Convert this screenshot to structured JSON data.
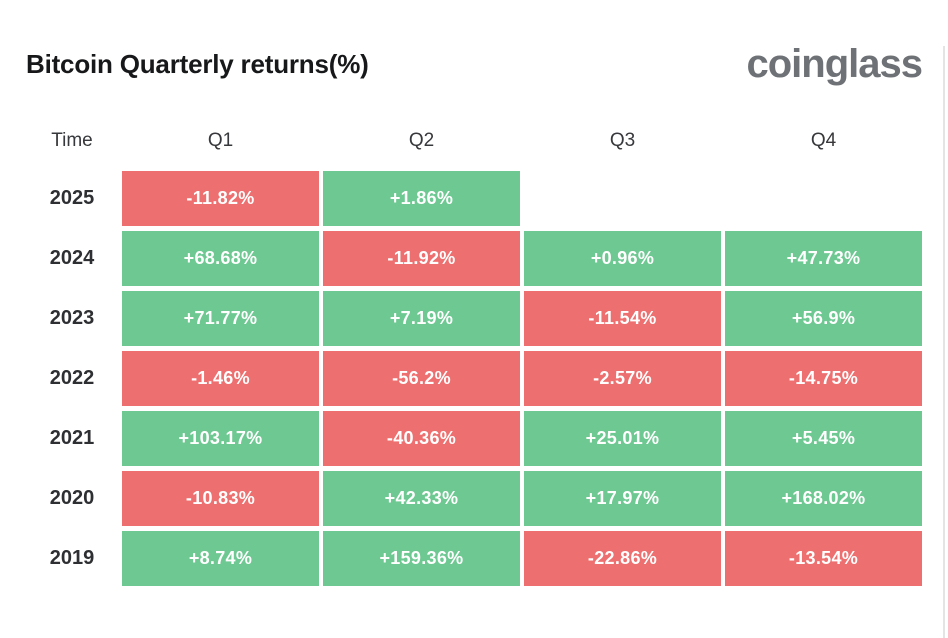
{
  "header": {
    "title": "Bitcoin Quarterly returns(%)",
    "logo": "coinglass"
  },
  "colors": {
    "positive": "#6ec892",
    "negative": "#ed6f6f",
    "title_text": "#17181a",
    "logo_text": "#6e7276",
    "cell_text": "#ffffff"
  },
  "chart_data": {
    "type": "heatmap",
    "title": "Bitcoin Quarterly returns(%)",
    "columns": [
      "Time",
      "Q1",
      "Q2",
      "Q3",
      "Q4"
    ],
    "color_rule": "green when value >= 0, red when value < 0",
    "positive_color": "#6ec892",
    "negative_color": "#ed6f6f",
    "rows": [
      {
        "year": "2025",
        "cells": [
          {
            "label": "-11.82%",
            "value": -11.82
          },
          {
            "label": "+1.86%",
            "value": 1.86
          },
          {
            "label": "",
            "value": null
          },
          {
            "label": "",
            "value": null
          }
        ]
      },
      {
        "year": "2024",
        "cells": [
          {
            "label": "+68.68%",
            "value": 68.68
          },
          {
            "label": "-11.92%",
            "value": -11.92
          },
          {
            "label": "+0.96%",
            "value": 0.96
          },
          {
            "label": "+47.73%",
            "value": 47.73
          }
        ]
      },
      {
        "year": "2023",
        "cells": [
          {
            "label": "+71.77%",
            "value": 71.77
          },
          {
            "label": "+7.19%",
            "value": 7.19
          },
          {
            "label": "-11.54%",
            "value": -11.54
          },
          {
            "label": "+56.9%",
            "value": 56.9
          }
        ]
      },
      {
        "year": "2022",
        "cells": [
          {
            "label": "-1.46%",
            "value": -1.46
          },
          {
            "label": "-56.2%",
            "value": -56.2
          },
          {
            "label": "-2.57%",
            "value": -2.57
          },
          {
            "label": "-14.75%",
            "value": -14.75
          }
        ]
      },
      {
        "year": "2021",
        "cells": [
          {
            "label": "+103.17%",
            "value": 103.17
          },
          {
            "label": "-40.36%",
            "value": -40.36
          },
          {
            "label": "+25.01%",
            "value": 25.01
          },
          {
            "label": "+5.45%",
            "value": 5.45
          }
        ]
      },
      {
        "year": "2020",
        "cells": [
          {
            "label": "-10.83%",
            "value": -10.83
          },
          {
            "label": "+42.33%",
            "value": 42.33
          },
          {
            "label": "+17.97%",
            "value": 17.97
          },
          {
            "label": "+168.02%",
            "value": 168.02
          }
        ]
      },
      {
        "year": "2019",
        "cells": [
          {
            "label": "+8.74%",
            "value": 8.74
          },
          {
            "label": "+159.36%",
            "value": 159.36
          },
          {
            "label": "-22.86%",
            "value": -22.86
          },
          {
            "label": "-13.54%",
            "value": -13.54
          }
        ]
      }
    ]
  }
}
